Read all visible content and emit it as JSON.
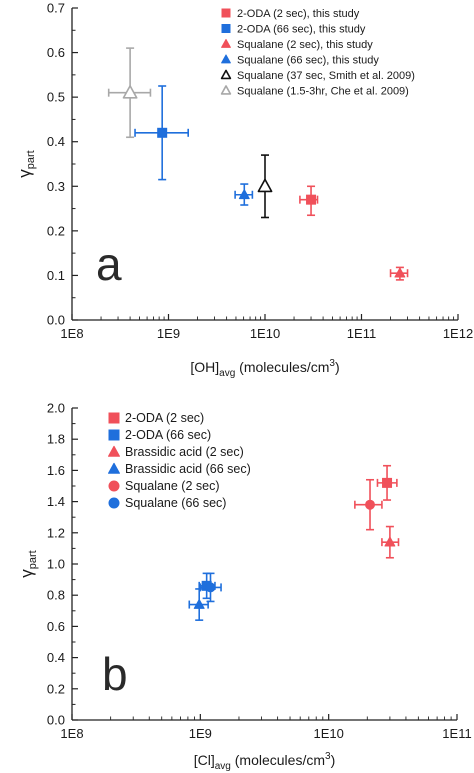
{
  "chart_data": [
    {
      "type": "scatter",
      "panel_label": "a",
      "ylabel": "γ",
      "ylabel_sub": "part",
      "xlabel": "[OH]",
      "xlabel_sub": "avg",
      "xlabel_rest": " (molecules/cm",
      "xlabel_sup": "3",
      "xlabel_end": ")",
      "xscale": "log",
      "xlim": [
        100000000.0,
        1000000000000.0
      ],
      "ylim": [
        0.0,
        0.7
      ],
      "x_ticks": [
        "1E8",
        "1E9",
        "1E10",
        "1E11",
        "1E12"
      ],
      "y_ticks": [
        "0.0",
        "0.1",
        "0.2",
        "0.3",
        "0.4",
        "0.5",
        "0.6",
        "0.7"
      ],
      "legend_position": "top-right",
      "series": [
        {
          "name": "2-ODA (2 sec), this study",
          "color": "#f0505a",
          "marker": "square",
          "filled": true,
          "points": [
            {
              "x": 30000000000.0,
              "y": 0.27,
              "x_err": [
                23000000000.0,
                35000000000.0
              ],
              "y_err": [
                0.235,
                0.3
              ]
            }
          ]
        },
        {
          "name": "2-ODA (66 sec), this study",
          "color": "#1f6fdc",
          "marker": "square",
          "filled": true,
          "points": [
            {
              "x": 860000000.0,
              "y": 0.42,
              "x_err": [
                450000000.0,
                1600000000.0
              ],
              "y_err": [
                0.315,
                0.525
              ]
            }
          ]
        },
        {
          "name": "Squalane (2 sec), this study",
          "color": "#f0505a",
          "marker": "triangle",
          "filled": true,
          "points": [
            {
              "x": 250000000000.0,
              "y": 0.105,
              "x_err": [
                200000000000.0,
                300000000000.0
              ],
              "y_err": [
                0.09,
                0.118
              ]
            }
          ]
        },
        {
          "name": "Squalane (66 sec), this study",
          "color": "#1f6fdc",
          "marker": "triangle",
          "filled": true,
          "points": [
            {
              "x": 6100000000.0,
              "y": 0.281,
              "x_err": [
                4900000000.0,
                7400000000.0
              ],
              "y_err": [
                0.258,
                0.305
              ]
            }
          ]
        },
        {
          "name": "Squalane (37 sec, Smith et al. 2009)",
          "color": "#111111",
          "marker": "triangle",
          "filled": false,
          "points": [
            {
              "x": 10000000000.0,
              "y": 0.3,
              "x_err": null,
              "y_err": [
                0.23,
                0.37
              ]
            }
          ]
        },
        {
          "name": "Squalane (1.5-3hr, Che et al. 2009)",
          "color": "#a8a8a8",
          "marker": "triangle",
          "filled": false,
          "points": [
            {
              "x": 400000000.0,
              "y": 0.51,
              "x_err": [
                240000000.0,
                650000000.0
              ],
              "y_err": [
                0.41,
                0.61
              ]
            }
          ]
        }
      ]
    },
    {
      "type": "scatter",
      "panel_label": "b",
      "ylabel": "γ",
      "ylabel_sub": "part",
      "xlabel": "[Cl]",
      "xlabel_sub": "avg",
      "xlabel_rest": " (molecules/cm",
      "xlabel_sup": "3",
      "xlabel_end": ")",
      "xscale": "log",
      "xlim": [
        100000000.0,
        100000000000.0
      ],
      "ylim": [
        0.0,
        2.0
      ],
      "x_ticks": [
        "1E8",
        "1E9",
        "1E10",
        "1E11"
      ],
      "y_ticks": [
        "0.0",
        "0.2",
        "0.4",
        "0.6",
        "0.8",
        "1.0",
        "1.2",
        "1.4",
        "1.6",
        "1.8",
        "2.0"
      ],
      "legend_position": "top-left",
      "series": [
        {
          "name": "2-ODA (2 sec)",
          "color": "#f0505a",
          "marker": "square",
          "filled": true,
          "points": [
            {
              "x": 28500000000.0,
              "y": 1.52,
              "x_err": [
                24000000000.0,
                34000000000.0
              ],
              "y_err": [
                1.41,
                1.63
              ]
            }
          ]
        },
        {
          "name": "2-ODA (66 sec)",
          "color": "#1f6fdc",
          "marker": "square",
          "filled": true,
          "points": [
            {
              "x": 1120000000.0,
              "y": 0.86,
              "x_err": [
                980000000.0,
                1300000000.0
              ],
              "y_err": [
                0.78,
                0.94
              ]
            }
          ]
        },
        {
          "name": "Brassidic acid (2 sec)",
          "color": "#f0505a",
          "marker": "triangle",
          "filled": true,
          "points": [
            {
              "x": 30000000000.0,
              "y": 1.14,
              "x_err": [
                26000000000.0,
                35000000000.0
              ],
              "y_err": [
                1.04,
                1.24
              ]
            }
          ]
        },
        {
          "name": "Brassidic acid (66 sec)",
          "color": "#1f6fdc",
          "marker": "triangle",
          "filled": true,
          "points": [
            {
              "x": 980000000.0,
              "y": 0.74,
              "x_err": [
                820000000.0,
                1150000000.0
              ],
              "y_err": [
                0.64,
                0.84
              ]
            }
          ]
        },
        {
          "name": "Squalane (2 sec)",
          "color": "#f0505a",
          "marker": "circle",
          "filled": true,
          "points": [
            {
              "x": 21000000000.0,
              "y": 1.38,
              "x_err": [
                16000000000.0,
                26000000000.0
              ],
              "y_err": [
                1.22,
                1.54
              ]
            }
          ]
        },
        {
          "name": "Squalane (66 sec)",
          "color": "#1f6fdc",
          "marker": "circle",
          "filled": true,
          "points": [
            {
              "x": 1200000000.0,
              "y": 0.85,
              "x_err": [
                1000000000.0,
                1450000000.0
              ],
              "y_err": [
                0.76,
                0.94
              ]
            }
          ]
        }
      ]
    }
  ]
}
